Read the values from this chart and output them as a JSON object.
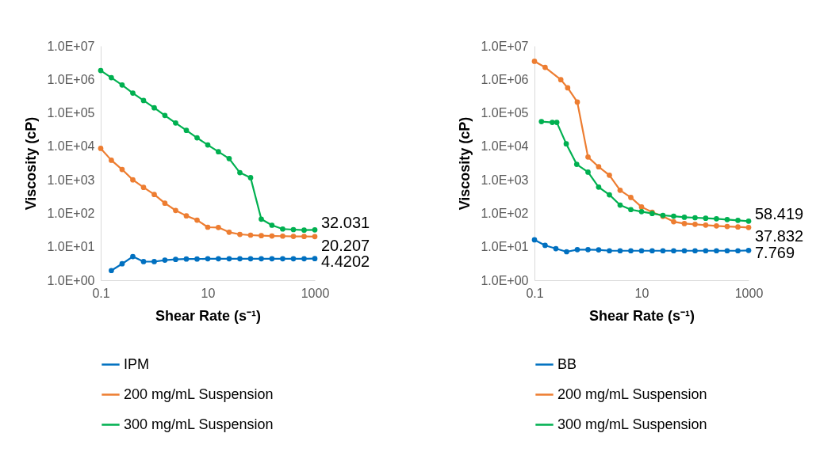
{
  "chart_data": [
    {
      "type": "line",
      "xlabel": "Shear Rate (s⁻¹)",
      "ylabel": "Viscosity (cP)",
      "log": "xy",
      "grid": false,
      "legend": "bottom",
      "marker": "circle",
      "line_style": "solid",
      "xlim": [
        0.1,
        1000
      ],
      "xticks": [
        0.1,
        10,
        1000
      ],
      "ylim": [
        1,
        10000000
      ],
      "yticks": [
        {
          "value": 1,
          "label": "1.0E+00"
        },
        {
          "value": 10,
          "label": "1.0E+01"
        },
        {
          "value": 100,
          "label": "1.0E+02"
        },
        {
          "value": 1000,
          "label": "1.0E+03"
        },
        {
          "value": 10000,
          "label": "1.0E+04"
        },
        {
          "value": 100000,
          "label": "1.0E+05"
        },
        {
          "value": 1000000,
          "label": "1.0E+06"
        },
        {
          "value": 10000000,
          "label": "1.0E+07"
        }
      ],
      "x": [
        0.1,
        0.158,
        0.251,
        0.398,
        0.631,
        1,
        1.58,
        2.51,
        3.98,
        6.31,
        10,
        15.8,
        25.1,
        39.8,
        63.1,
        100,
        158,
        251,
        398,
        631,
        1000
      ],
      "series": [
        {
          "name": "IPM",
          "color": "#0070c0",
          "values": [
            null,
            1.95,
            3.1,
            5.1,
            3.6,
            3.6,
            4.0,
            4.2,
            4.3,
            4.3,
            4.4,
            4.4,
            4.4,
            4.4,
            4.4,
            4.4,
            4.4,
            4.4,
            4.4,
            4.4,
            4.4202
          ],
          "value_labels": [
            null,
            null,
            null,
            null,
            null,
            null,
            null,
            null,
            null,
            null,
            null,
            null,
            null,
            null,
            null,
            null,
            null,
            null,
            null,
            null,
            "4.4202"
          ]
        },
        {
          "name": "200 mg/mL Suspension",
          "color": "#ed7d31",
          "values": [
            8700,
            3850,
            2040,
            1000,
            594,
            364,
            200,
            122,
            84,
            62.6,
            38.4,
            37.7,
            27.2,
            23.5,
            22.3,
            21.5,
            21,
            20.8,
            20.5,
            20.3,
            20.207
          ],
          "value_labels": [
            null,
            null,
            null,
            null,
            null,
            null,
            null,
            null,
            null,
            null,
            null,
            null,
            null,
            null,
            null,
            null,
            null,
            null,
            null,
            null,
            "20.207"
          ]
        },
        {
          "name": "300 mg/mL Suspension",
          "color": "#00b050",
          "values": [
            1840000,
            1130000,
            680000,
            390000,
            235000,
            142000,
            84000,
            50000,
            30000,
            18000,
            11000,
            6900,
            4300,
            1640,
            1160,
            67,
            44,
            34,
            32.6,
            31.4,
            32.031
          ],
          "value_labels": [
            null,
            null,
            null,
            null,
            null,
            null,
            null,
            null,
            null,
            null,
            null,
            null,
            null,
            null,
            null,
            null,
            null,
            null,
            null,
            null,
            "32.031"
          ]
        }
      ]
    },
    {
      "type": "line",
      "xlabel": "Shear Rate (s⁻¹)",
      "ylabel": "Viscosity (cP)",
      "log": "xy",
      "grid": false,
      "legend": "bottom",
      "marker": "circle",
      "line_style": "solid",
      "xlim": [
        0.1,
        1000
      ],
      "xticks": [
        0.1,
        10,
        1000
      ],
      "ylim": [
        1,
        10000000
      ],
      "yticks": [
        {
          "value": 1,
          "label": "1.0E+00"
        },
        {
          "value": 10,
          "label": "1.0E+01"
        },
        {
          "value": 100,
          "label": "1.0E+02"
        },
        {
          "value": 1000,
          "label": "1.0E+03"
        },
        {
          "value": 10000,
          "label": "1.0E+04"
        },
        {
          "value": 100000,
          "label": "1.0E+05"
        },
        {
          "value": 1000000,
          "label": "1.0E+06"
        },
        {
          "value": 10000000,
          "label": "1.0E+07"
        }
      ],
      "series": [
        {
          "name": "BB",
          "color": "#0070c0",
          "x": [
            0.1,
            0.158,
            0.251,
            0.398,
            0.631,
            1,
            1.58,
            2.51,
            3.98,
            6.31,
            10,
            15.8,
            25.1,
            39.8,
            63.1,
            100,
            158,
            251,
            398,
            631,
            1000
          ],
          "values": [
            16.1,
            11,
            8.8,
            7.1,
            8.2,
            8.2,
            8.1,
            7.6,
            7.6,
            7.6,
            7.6,
            7.6,
            7.6,
            7.6,
            7.6,
            7.6,
            7.6,
            7.6,
            7.6,
            7.6,
            7.769
          ],
          "value_labels": [
            null,
            null,
            null,
            null,
            null,
            null,
            null,
            null,
            null,
            null,
            null,
            null,
            null,
            null,
            null,
            null,
            null,
            null,
            null,
            null,
            "7.769"
          ]
        },
        {
          "name": "200 mg/mL Suspension",
          "color": "#ed7d31",
          "x": [
            0.1,
            0.158,
            0.31,
            0.417,
            0.631,
            1,
            1.58,
            2.51,
            3.98,
            6.31,
            10,
            15.8,
            25.1,
            39.8,
            63.1,
            100,
            158,
            251,
            398,
            631,
            1000
          ],
          "values": [
            3470000,
            2290000,
            980000,
            560000,
            210000,
            4800,
            2450,
            1370,
            487,
            298,
            155,
            108,
            81,
            56,
            49.4,
            46.8,
            44.4,
            42,
            40.5,
            39.1,
            37.832
          ],
          "value_labels": [
            null,
            null,
            null,
            null,
            null,
            null,
            null,
            null,
            null,
            null,
            null,
            null,
            null,
            null,
            null,
            null,
            null,
            null,
            null,
            null,
            "37.832"
          ]
        },
        {
          "name": "300 mg/mL Suspension",
          "color": "#00b050",
          "x": [
            0.135,
            0.215,
            0.261,
            0.392,
            0.615,
            1,
            1.58,
            2.51,
            3.98,
            6.31,
            10,
            15.8,
            25.1,
            39.8,
            63.1,
            100,
            158,
            251,
            398,
            631,
            1000
          ],
          "values": [
            55000,
            52000,
            52000,
            11900,
            2900,
            1700,
            605,
            357,
            176,
            129,
            112,
            98.6,
            87,
            82,
            76,
            73.8,
            71,
            68.6,
            65,
            61.5,
            58.419
          ],
          "value_labels": [
            null,
            null,
            null,
            null,
            null,
            null,
            null,
            null,
            null,
            null,
            null,
            null,
            null,
            null,
            null,
            null,
            null,
            null,
            null,
            null,
            "58.419"
          ]
        }
      ]
    }
  ]
}
